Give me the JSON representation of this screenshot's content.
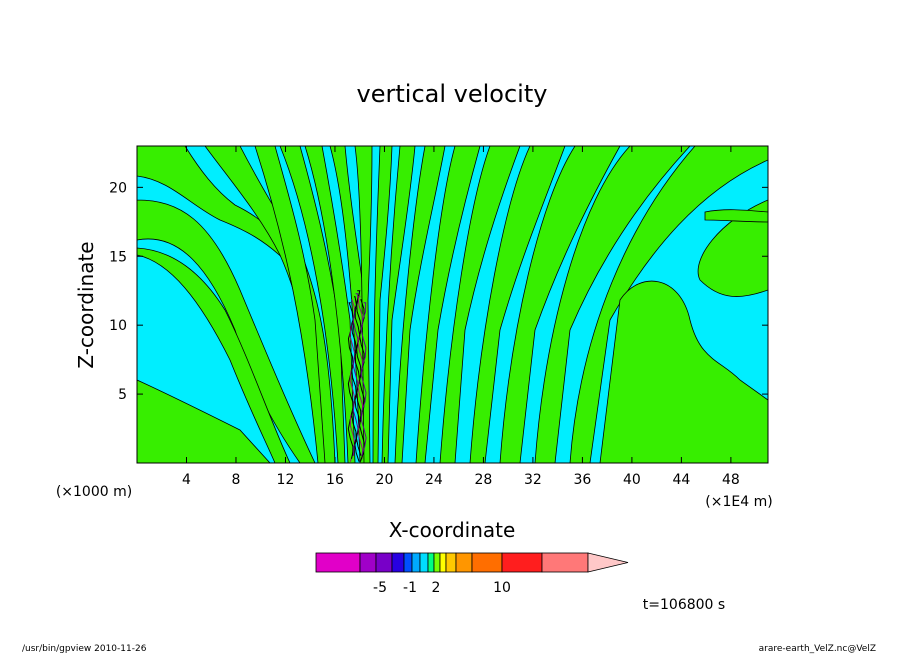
{
  "chart_data": {
    "type": "heatmap",
    "title": "vertical velocity",
    "xlabel": "X-coordinate",
    "ylabel": "Z-coordinate",
    "x_unit_note": "(×1E4 m)",
    "y_unit_note": "(×1000 m)",
    "xlim": [
      0,
      51
    ],
    "ylim": [
      0,
      23
    ],
    "x_ticks": [
      4,
      8,
      12,
      16,
      20,
      24,
      28,
      32,
      36,
      40,
      44,
      48
    ],
    "y_ticks": [
      5,
      10,
      15,
      20
    ],
    "colorbar": {
      "levels": [
        -10,
        -8,
        -5,
        -4,
        -3,
        -2,
        -1,
        0,
        1,
        2,
        3,
        4,
        6,
        10,
        14,
        19
      ],
      "colors": [
        "#e100c8",
        "#a000c8",
        "#7800c8",
        "#2800e1",
        "#0050ff",
        "#00aaff",
        "#00dcff",
        "#00ff80",
        "#78ff00",
        "#ffff00",
        "#ffc800",
        "#ff9600",
        "#ff6e00",
        "#ff1e1e",
        "#ff7878",
        "#ffc8c8"
      ],
      "tick_labels": [
        "-5",
        "-1",
        "2",
        "10"
      ]
    },
    "dominant_colors": {
      "cyan": "#00eeff",
      "green": "#37ee00"
    },
    "grid": false
  },
  "annotations": {
    "time": "t=106800 s",
    "footer_left": "/usr/bin/gpview   2010-11-26",
    "footer_right": "arare-earth_VelZ.nc@VelZ"
  }
}
